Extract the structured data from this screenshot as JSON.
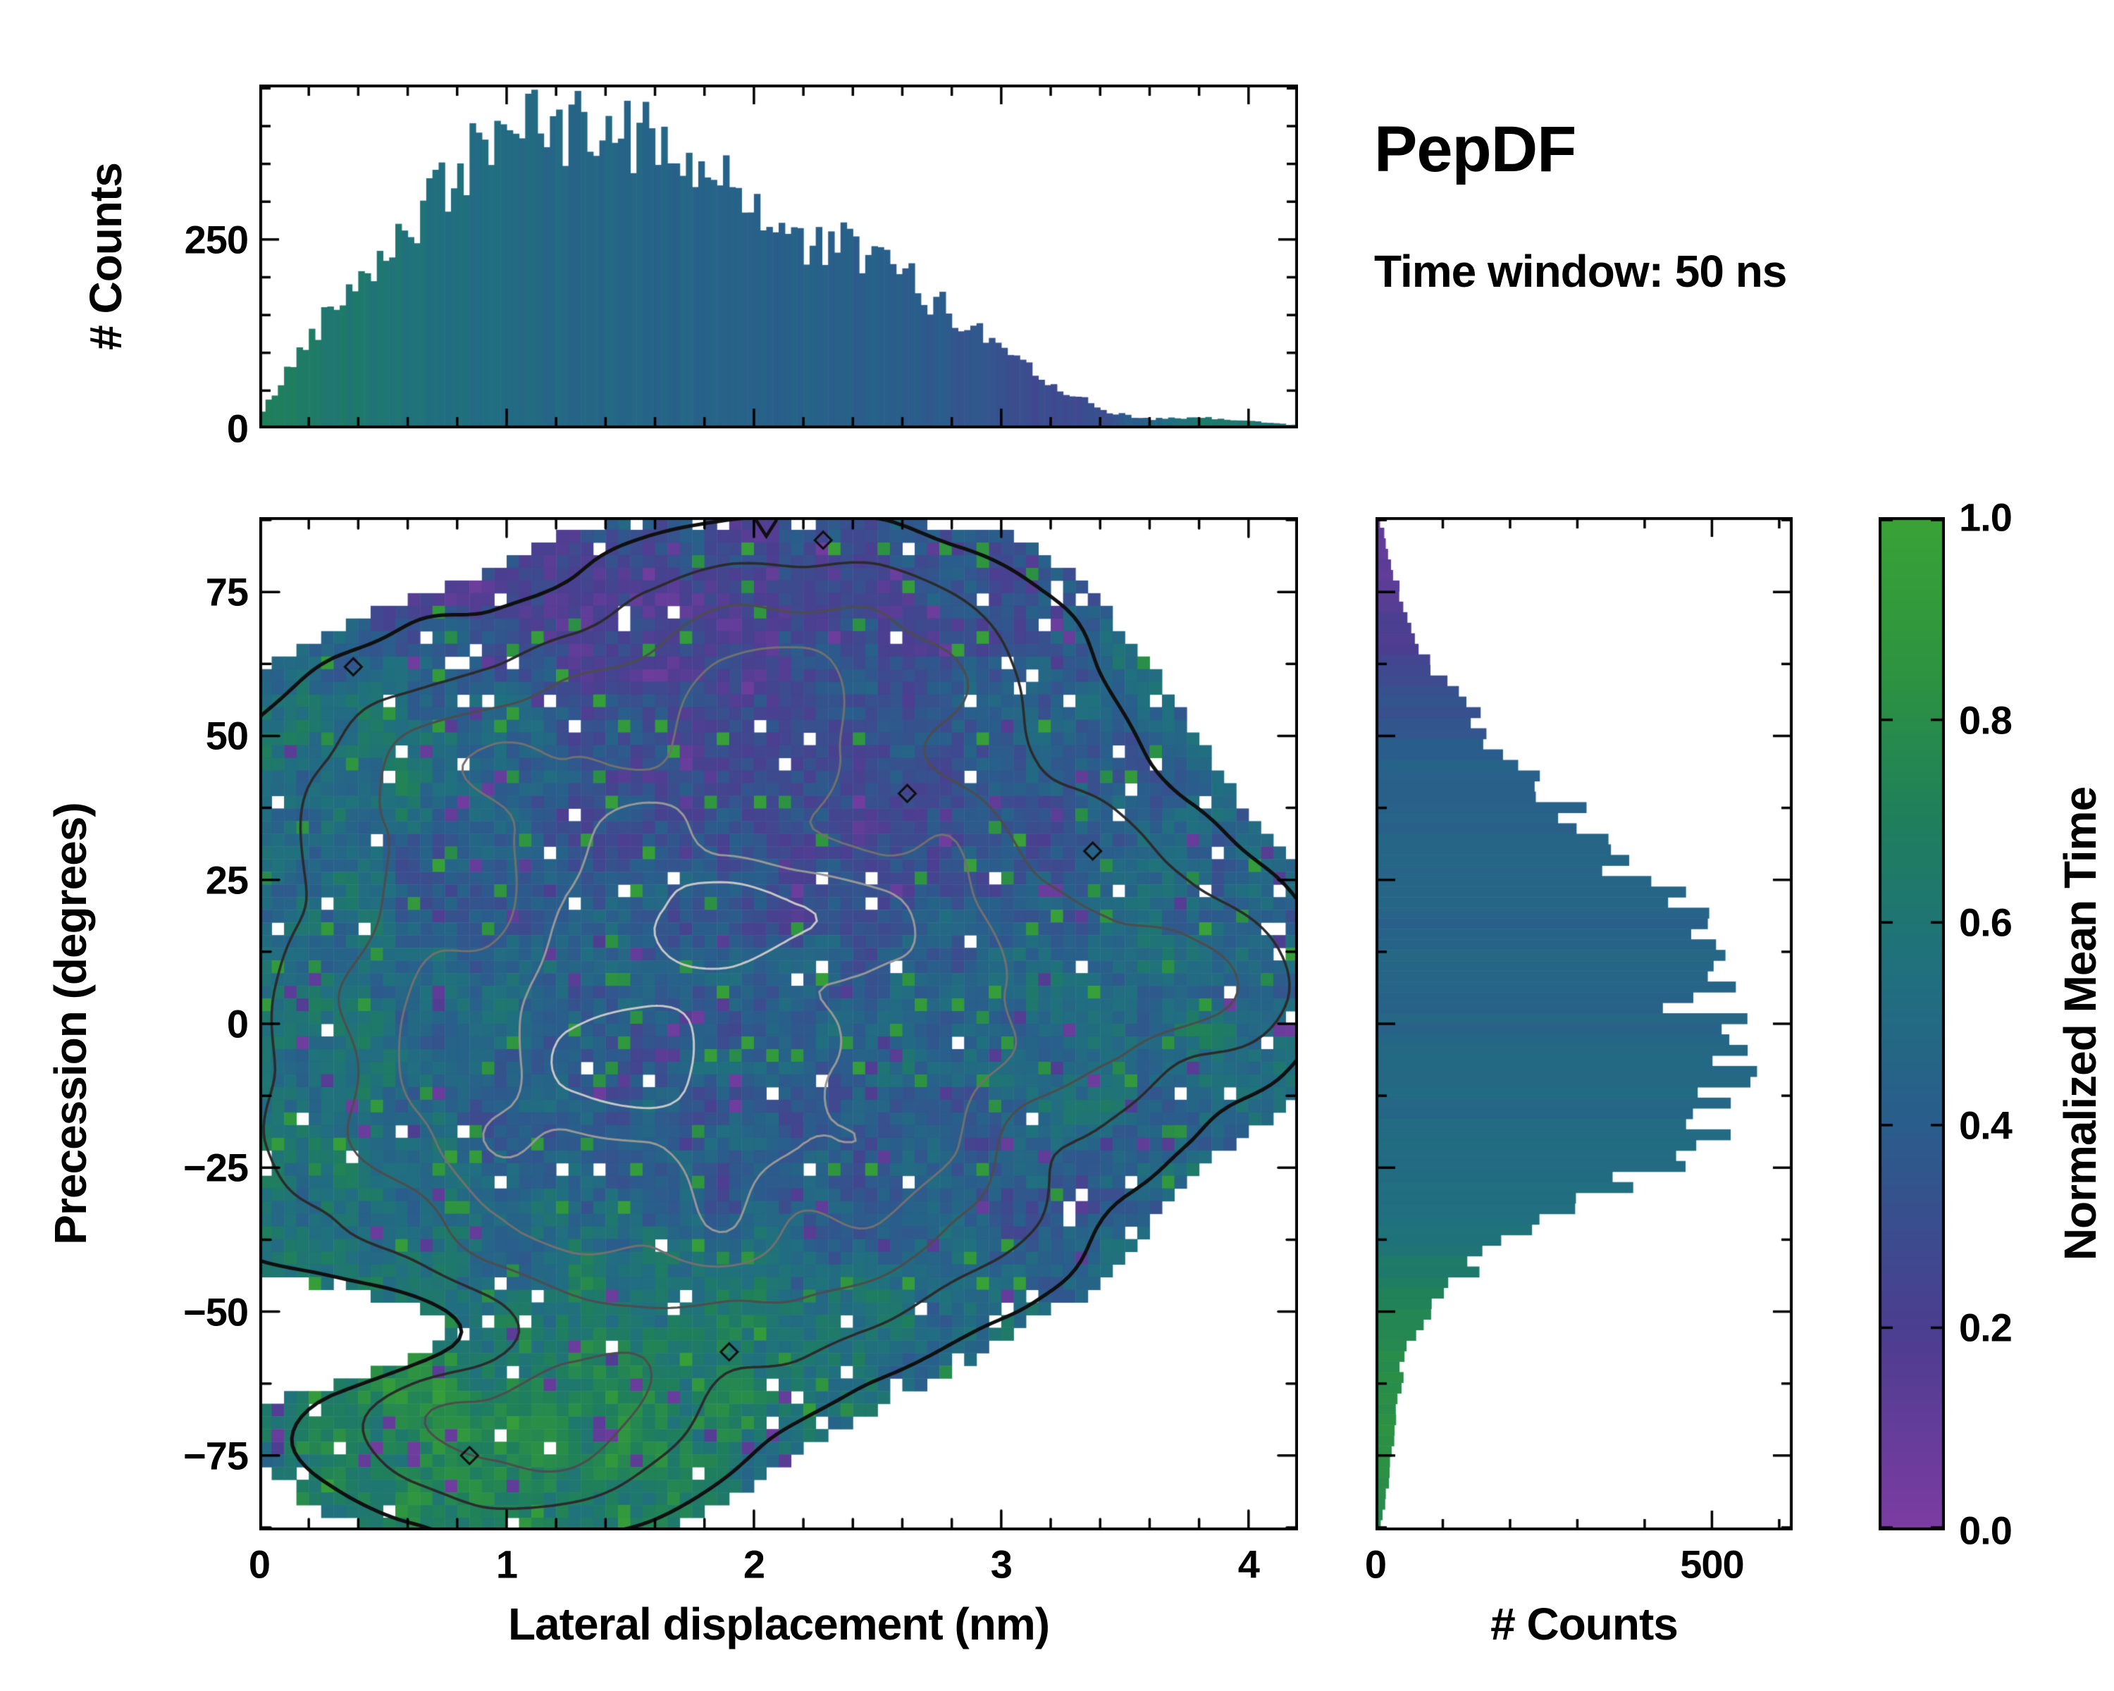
{
  "annotations": {
    "title": "PepDF",
    "subtitle": "Time window: 50 ns"
  },
  "colormap": {
    "name": "purple-blue-green",
    "stops": [
      {
        "t": 0.0,
        "color": "#7d3ca3"
      },
      {
        "t": 0.2,
        "color": "#4b3e90"
      },
      {
        "t": 0.4,
        "color": "#2a5d8c"
      },
      {
        "t": 0.55,
        "color": "#20707f"
      },
      {
        "t": 0.7,
        "color": "#1f7f5c"
      },
      {
        "t": 0.85,
        "color": "#2e9440"
      },
      {
        "t": 1.0,
        "color": "#3aa336"
      }
    ]
  },
  "axes": {
    "top_hist": {
      "ylabel": "# Counts",
      "ytick_values": [
        0,
        250
      ],
      "ytick_labels": [
        "0",
        "250"
      ],
      "ylim": [
        0,
        455
      ]
    },
    "main": {
      "xlabel": "Lateral displacement (nm)",
      "ylabel": "Precession (degrees)",
      "xtick_values": [
        0,
        1,
        2,
        3,
        4
      ],
      "xtick_labels": [
        "0",
        "1",
        "2",
        "3",
        "4"
      ],
      "ytick_values": [
        -75,
        -50,
        -25,
        0,
        25,
        50,
        75
      ],
      "ytick_labels": [
        "−75",
        "−50",
        "−25",
        "0",
        "25",
        "50",
        "75"
      ],
      "xlim": [
        0,
        4.2
      ],
      "ylim": [
        -88,
        88
      ]
    },
    "right_hist": {
      "xlabel": "# Counts",
      "xtick_values": [
        0,
        500
      ],
      "xtick_labels": [
        "0",
        "500"
      ],
      "xlim": [
        0,
        620
      ]
    },
    "colorbar": {
      "label": "Normalized Mean Time",
      "tick_values": [
        0,
        0.2,
        0.4,
        0.6,
        0.8,
        1
      ],
      "tick_labels": [
        "0.0",
        "0.2",
        "0.4",
        "0.6",
        "0.8",
        "1.0"
      ]
    }
  },
  "chart_data": [
    {
      "type": "bar",
      "panel": "top_marginal",
      "title": "Lateral displacement marginal histogram colored by normalized mean time",
      "orientation": "vertical",
      "n_bins": 168,
      "xlim": [
        0,
        4.2
      ],
      "ylim": [
        0,
        455
      ],
      "x_control": [
        0,
        0.2,
        0.4,
        0.6,
        0.8,
        1.0,
        1.2,
        1.4,
        1.6,
        1.8,
        2.0,
        2.2,
        2.4,
        2.6,
        2.8,
        3.0,
        3.2,
        3.4,
        3.6,
        3.8,
        4.0,
        4.2
      ],
      "counts_control": [
        15,
        120,
        205,
        265,
        335,
        415,
        390,
        400,
        385,
        345,
        300,
        240,
        240,
        205,
        150,
        112,
        62,
        25,
        12,
        14,
        10,
        4
      ],
      "color_control": [
        0.7,
        0.66,
        0.62,
        0.58,
        0.54,
        0.5,
        0.48,
        0.47,
        0.46,
        0.45,
        0.44,
        0.43,
        0.42,
        0.4,
        0.37,
        0.33,
        0.27,
        0.3,
        0.45,
        0.62,
        0.6,
        0.55
      ]
    },
    {
      "type": "heatmap",
      "panel": "joint",
      "title": "2D histogram of precession vs lateral displacement colored by normalized mean time with density contours",
      "xlim": [
        0,
        4.2
      ],
      "ylim": [
        -88,
        88
      ],
      "nx": 84,
      "ny": 80,
      "fill_threshold": 0.095,
      "base_value": 0.45,
      "base_weight": 1.0,
      "density_blobs": [
        {
          "x": 1.35,
          "y": -8,
          "sx": 0.85,
          "sy": 30,
          "a": 1.0
        },
        {
          "x": 2.2,
          "y": 18,
          "sx": 0.8,
          "sy": 28,
          "a": 0.75
        },
        {
          "x": 2.2,
          "y": 62,
          "sx": 0.6,
          "sy": 15,
          "a": 0.5
        },
        {
          "x": 0.9,
          "y": 45,
          "sx": 0.6,
          "sy": 14,
          "a": 0.4
        },
        {
          "x": 3.3,
          "y": 8,
          "sx": 0.55,
          "sy": 16,
          "a": 0.4
        },
        {
          "x": 3.8,
          "y": 6,
          "sx": 0.35,
          "sy": 9,
          "a": 0.22
        },
        {
          "x": 1.0,
          "y": -70,
          "sx": 0.5,
          "sy": 11,
          "a": 0.6
        },
        {
          "x": 1.8,
          "y": -45,
          "sx": 0.6,
          "sy": 10,
          "a": 0.25
        },
        {
          "x": 2.6,
          "y": -30,
          "sx": 0.5,
          "sy": 12,
          "a": 0.3
        },
        {
          "x": 0.55,
          "y": -55,
          "sx": 0.45,
          "sy": 7,
          "a": -0.4
        }
      ],
      "value_blobs": [
        {
          "x": 2.0,
          "y": 60,
          "sx": 0.9,
          "sy": 14,
          "v": 0.12,
          "w": 3.0
        },
        {
          "x": 1.3,
          "y": 72,
          "sx": 0.5,
          "sy": 9,
          "v": 0.15,
          "w": 2.0
        },
        {
          "x": 2.5,
          "y": 32,
          "sx": 0.7,
          "sy": 12,
          "v": 0.2,
          "w": 1.6
        },
        {
          "x": 2.5,
          "y": -28,
          "sx": 0.5,
          "sy": 8,
          "v": 0.25,
          "w": 1.4
        },
        {
          "x": 1.0,
          "y": -70,
          "sx": 0.55,
          "sy": 12,
          "v": 0.85,
          "w": 4.0
        },
        {
          "x": 1.2,
          "y": -47,
          "sx": 1.0,
          "sy": 8,
          "v": 0.72,
          "w": 2.0
        },
        {
          "x": 0.25,
          "y": -20,
          "sx": 0.35,
          "sy": 25,
          "v": 0.68,
          "w": 1.5
        },
        {
          "x": 0.65,
          "y": 52,
          "sx": 0.45,
          "sy": 9,
          "v": 0.78,
          "w": 2.2
        },
        {
          "x": 3.0,
          "y": 55,
          "sx": 0.5,
          "sy": 10,
          "v": 0.7,
          "w": 1.5
        },
        {
          "x": 3.6,
          "y": 4,
          "sx": 0.5,
          "sy": 14,
          "v": 0.55,
          "w": 2.5
        },
        {
          "x": 1.4,
          "y": -15,
          "sx": 0.8,
          "sy": 18,
          "v": 0.4,
          "w": 1.6
        },
        {
          "x": 0.9,
          "y": -38,
          "sx": 0.6,
          "sy": 8,
          "v": 0.35,
          "w": 1.2
        }
      ],
      "contours": {
        "relative_levels": [
          0.09,
          0.2,
          0.34,
          0.5,
          0.66,
          0.82
        ],
        "colors": [
          "#101010",
          "#2b2b2b",
          "#4d4d4d",
          "#707070",
          "#979797",
          "#c6c6c6"
        ],
        "widths": [
          5,
          3.5,
          3,
          3,
          3,
          3
        ]
      },
      "diamond_markers": [
        [
          0.38,
          62
        ],
        [
          2.28,
          84
        ],
        [
          3.37,
          30
        ],
        [
          1.9,
          -57
        ],
        [
          0.85,
          -75
        ],
        [
          2.62,
          40
        ]
      ],
      "arrow_marker_x": 2.05
    },
    {
      "type": "bar",
      "panel": "right_marginal",
      "title": "Precession marginal histogram colored by normalized mean time",
      "orientation": "horizontal",
      "n_bins": 96,
      "ylim": [
        -88,
        88
      ],
      "xlim": [
        0,
        620
      ],
      "y_control": [
        -88,
        -80,
        -72,
        -64,
        -56,
        -48,
        -40,
        -32,
        -24,
        -16,
        -8,
        0,
        8,
        16,
        24,
        32,
        40,
        48,
        56,
        64,
        72,
        80,
        88
      ],
      "counts_control": [
        6,
        18,
        28,
        35,
        45,
        90,
        165,
        300,
        420,
        520,
        545,
        490,
        505,
        465,
        400,
        330,
        260,
        185,
        130,
        75,
        45,
        22,
        6
      ],
      "color_control": [
        0.78,
        0.8,
        0.82,
        0.8,
        0.78,
        0.72,
        0.62,
        0.54,
        0.5,
        0.48,
        0.47,
        0.46,
        0.46,
        0.45,
        0.45,
        0.45,
        0.44,
        0.4,
        0.32,
        0.22,
        0.16,
        0.12,
        0.1
      ]
    }
  ]
}
